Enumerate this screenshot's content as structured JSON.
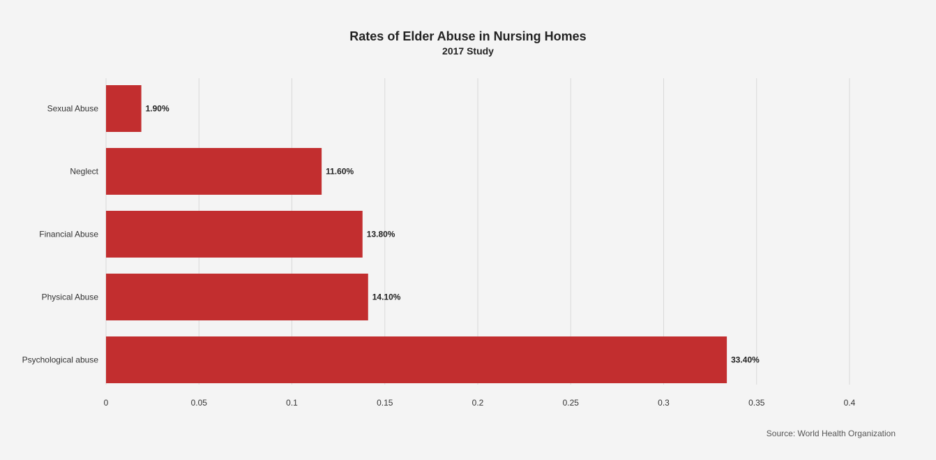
{
  "chart_data": {
    "type": "bar",
    "orientation": "horizontal",
    "title": "Rates of Elder Abuse in Nursing Homes",
    "subtitle": "2017 Study",
    "source": "Source: World Health Organization",
    "categories": [
      "Sexual Abuse",
      "Neglect",
      "Financial Abuse",
      "Physical Abuse",
      "Psychological abuse"
    ],
    "values": [
      0.019,
      0.116,
      0.138,
      0.141,
      0.334
    ],
    "data_labels": [
      "1.90%",
      "11.60%",
      "13.80%",
      "14.10%",
      "33.40%"
    ],
    "xlim": [
      0,
      0.4
    ],
    "x_ticks": [
      "0",
      "0.05",
      "0.1",
      "0.15",
      "0.2",
      "0.25",
      "0.3",
      "0.35",
      "0.4"
    ],
    "grid": "vertical",
    "legend": "none",
    "bar_color": "#c22e2f"
  }
}
